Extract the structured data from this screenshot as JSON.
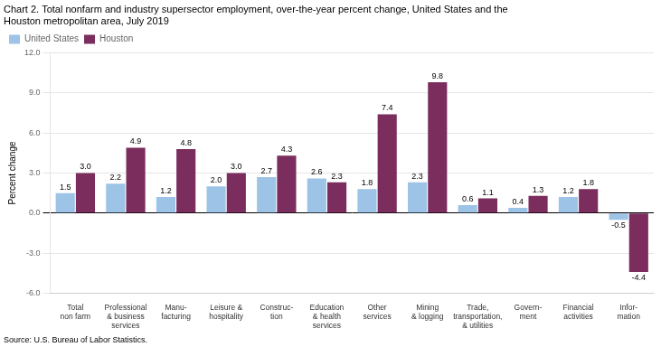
{
  "chart_data": {
    "type": "bar",
    "title": "Chart 2. Total nonfarm and industry supersector employment, over-the-year percent change, United States and the\nHouston metropolitan area, July 2019",
    "y_label": "Percent change",
    "source": "Source: U.S. Bureau of Labor Statistics.",
    "categories": [
      "Total\nnon farm",
      "Professional\n& business\nservices",
      "Manu-\nfacturing",
      "Leisure &\nhospitality",
      "Construc-\ntion",
      "Education\n& health\nservices",
      "Other\nservices",
      "Mining\n& logging",
      "Trade,\ntransportation,\n& utilities",
      "Govern-\nment",
      "Financial\nactivities",
      "Infor-\nmation"
    ],
    "series": [
      {
        "name": "United States",
        "color": "#9DC3E6",
        "values": [
          1.5,
          2.2,
          1.2,
          2.0,
          2.7,
          2.6,
          1.8,
          2.3,
          0.6,
          0.4,
          1.2,
          -0.5
        ],
        "value_labels": [
          "1.5",
          "2.2",
          "1.2",
          "2.0",
          "2.7",
          "2.6",
          "1.8",
          "2.3",
          "0.6",
          "0.4",
          "1.2",
          "-0.5"
        ]
      },
      {
        "name": "Houston",
        "color": "#7B2D5E",
        "values": [
          3.0,
          4.9,
          4.8,
          3.0,
          4.3,
          2.3,
          7.4,
          9.8,
          1.1,
          1.3,
          1.8,
          -4.4
        ],
        "value_labels": [
          "3.0",
          "4.9",
          "4.8",
          "3.0",
          "4.3",
          "2.3",
          "7.4",
          "9.8",
          "1.1",
          "1.3",
          "1.8",
          "-4.4"
        ]
      }
    ],
    "ylim": [
      -6.0,
      12.0
    ],
    "yticks": [
      {
        "value": -6.0,
        "label": "-6.0"
      },
      {
        "value": -3.0,
        "label": "-3.0"
      },
      {
        "value": 0.0,
        "label": "0.0"
      },
      {
        "value": 3.0,
        "label": "3.0"
      },
      {
        "value": 6.0,
        "label": "6.0"
      },
      {
        "value": 9.0,
        "label": "9.0"
      },
      {
        "value": 12.0,
        "label": "12.0"
      }
    ],
    "grid": true,
    "legend": "upper left",
    "data_labels": true
  }
}
